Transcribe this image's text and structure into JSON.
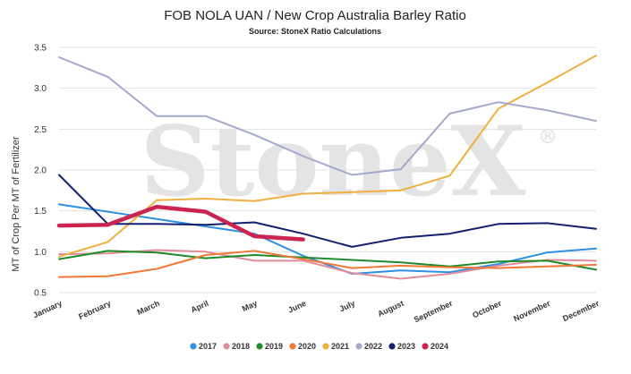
{
  "chart_data": {
    "type": "line",
    "title": "FOB NOLA UAN / New Crop Australia Barley Ratio",
    "subtitle": "Source: StoneX Ratio Calculations",
    "watermark": "StoneX",
    "watermark_mark": "®",
    "xlabel": "",
    "ylabel": "MT of Crop Per MT of Fertilizer",
    "categories": [
      "January",
      "February",
      "March",
      "April",
      "May",
      "June",
      "July",
      "August",
      "September",
      "October",
      "November",
      "December"
    ],
    "ylim": [
      0.5,
      3.5
    ],
    "yticks": [
      "0.5",
      "1.0",
      "1.5",
      "2.0",
      "2.5",
      "3.0",
      "3.5"
    ],
    "grid": true,
    "legend_position": "bottom",
    "series": [
      {
        "name": "2017",
        "color": "#2f8fe0",
        "width": 2,
        "values": [
          1.58,
          1.49,
          1.4,
          1.31,
          1.22,
          0.95,
          0.73,
          0.77,
          0.75,
          0.85,
          0.99,
          1.04
        ]
      },
      {
        "name": "2018",
        "color": "#e08c9c",
        "width": 2,
        "values": [
          0.97,
          0.98,
          1.02,
          1.0,
          0.89,
          0.89,
          0.74,
          0.67,
          0.73,
          0.83,
          0.9,
          0.89
        ]
      },
      {
        "name": "2019",
        "color": "#1e8a2a",
        "width": 2,
        "values": [
          0.91,
          1.01,
          0.99,
          0.92,
          0.96,
          0.93,
          0.9,
          0.87,
          0.82,
          0.88,
          0.89,
          0.78
        ]
      },
      {
        "name": "2020",
        "color": "#f07838",
        "width": 2,
        "values": [
          0.69,
          0.7,
          0.79,
          0.96,
          1.01,
          0.91,
          0.8,
          0.83,
          0.81,
          0.8,
          0.82,
          0.84
        ]
      },
      {
        "name": "2021",
        "color": "#f0b040",
        "width": 2,
        "values": [
          0.94,
          1.12,
          1.63,
          1.65,
          1.62,
          1.71,
          1.73,
          1.75,
          1.93,
          2.75,
          3.07,
          3.4
        ]
      },
      {
        "name": "2022",
        "color": "#a4a8cc",
        "width": 2,
        "values": [
          3.38,
          3.14,
          2.66,
          2.66,
          2.43,
          2.17,
          1.94,
          2.01,
          2.69,
          2.83,
          2.73,
          2.6
        ]
      },
      {
        "name": "2023",
        "color": "#12206e",
        "width": 2,
        "values": [
          1.94,
          1.34,
          1.34,
          1.33,
          1.36,
          1.22,
          1.06,
          1.17,
          1.22,
          1.34,
          1.35,
          1.28
        ]
      },
      {
        "name": "2024",
        "color": "#cc2450",
        "width": 4.5,
        "values": [
          1.32,
          1.33,
          1.55,
          1.49,
          1.19,
          1.15,
          null,
          null,
          null,
          null,
          null,
          null
        ]
      }
    ]
  }
}
